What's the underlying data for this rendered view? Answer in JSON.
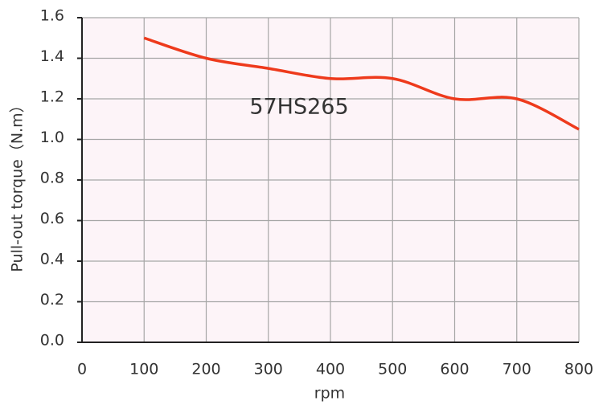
{
  "chart_data": {
    "type": "line",
    "annotation": "57HS265",
    "xlabel": "rpm",
    "ylabel": "Pull-out torque（N.m）",
    "x": [
      100,
      200,
      300,
      400,
      500,
      600,
      700,
      800
    ],
    "series": [
      {
        "name": "57HS265",
        "color": "#ee3a1c",
        "values": [
          1.5,
          1.4,
          1.35,
          1.3,
          1.3,
          1.2,
          1.2,
          1.05
        ]
      }
    ],
    "xlim": [
      0,
      800
    ],
    "xticks": [
      0,
      100,
      200,
      300,
      400,
      500,
      600,
      700,
      800
    ],
    "ylim": [
      0,
      1.6
    ],
    "yticks": [
      {
        "value": 0,
        "label": "0.0"
      },
      0.2,
      0.4,
      0.6,
      0.8,
      {
        "value": 1,
        "label": "1.0"
      },
      1.2,
      1.4,
      1.6
    ],
    "grid": true,
    "background": "#fdf4f8"
  }
}
